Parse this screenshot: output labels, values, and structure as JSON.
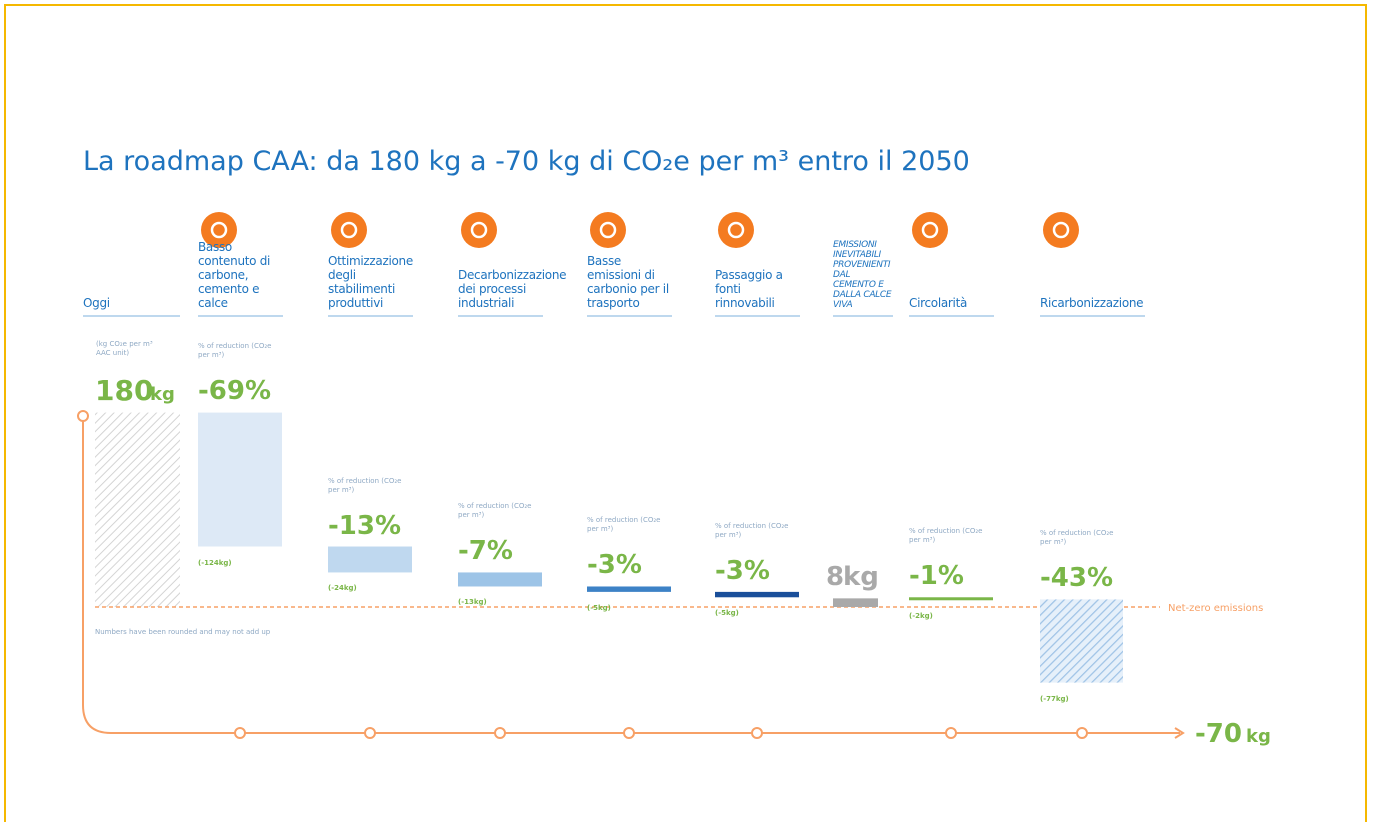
{
  "chart_data": {
    "type": "waterfall",
    "title": "La roadmap CAA: da 180 kg a -70 kg di CO₂e per m³ entro il 2050",
    "start": {
      "name": "Oggi",
      "note": "(kg CO₂e per m³ AAC unit)",
      "value": 180,
      "unit": "kg"
    },
    "reduction_note": "% of reduction (CO₂e per m³)",
    "steps": [
      {
        "name": "Basso contenuto di carbone, cemento e calce",
        "pct": -69,
        "pct_label": "-69%",
        "value": -124,
        "value_label": "(-124kg)",
        "color": "#dde9f6"
      },
      {
        "name": "Ottimizzazione degli stabilimenti produttivi",
        "pct": -13,
        "pct_label": "-13%",
        "value": -24,
        "value_label": "(-24kg)",
        "color": "#bfd8ef"
      },
      {
        "name": "Decarbonizzazione dei processi industriali",
        "pct": -7,
        "pct_label": "-7%",
        "value": -13,
        "value_label": "(-13kg)",
        "color": "#9dc4e7"
      },
      {
        "name": "Basse emissioni di carbonio per il trasporto",
        "pct": -3,
        "pct_label": "-3%",
        "value": -5,
        "value_label": "(-5kg)",
        "color": "#3d82c6"
      },
      {
        "name": "Passaggio a fonti rinnovabili",
        "pct": -3,
        "pct_label": "-3%",
        "value": -5,
        "value_label": "(-5kg)",
        "color": "#1a4f9a"
      },
      {
        "name": "Circolarità",
        "pct": -1,
        "pct_label": "-1%",
        "value": -2,
        "value_label": "(-2kg)",
        "color": "#7ab648"
      },
      {
        "name": "Ricarbonizzazione",
        "pct": -43,
        "pct_label": "-43%",
        "value": -77,
        "value_label": "(-77kg)",
        "color": "#9fc3e6"
      }
    ],
    "residual": {
      "name": "EMISSIONI INEVITABILI PROVENIENTI DAL CEMENTO E DALLA CALCE VIVA",
      "value": 8,
      "unit": "kg",
      "color": "#a9a9a9"
    },
    "end": {
      "value": -70,
      "unit": "kg"
    },
    "baseline_label": "Net-zero emissions",
    "footnote": "Numbers have been rounded and may not add up"
  }
}
